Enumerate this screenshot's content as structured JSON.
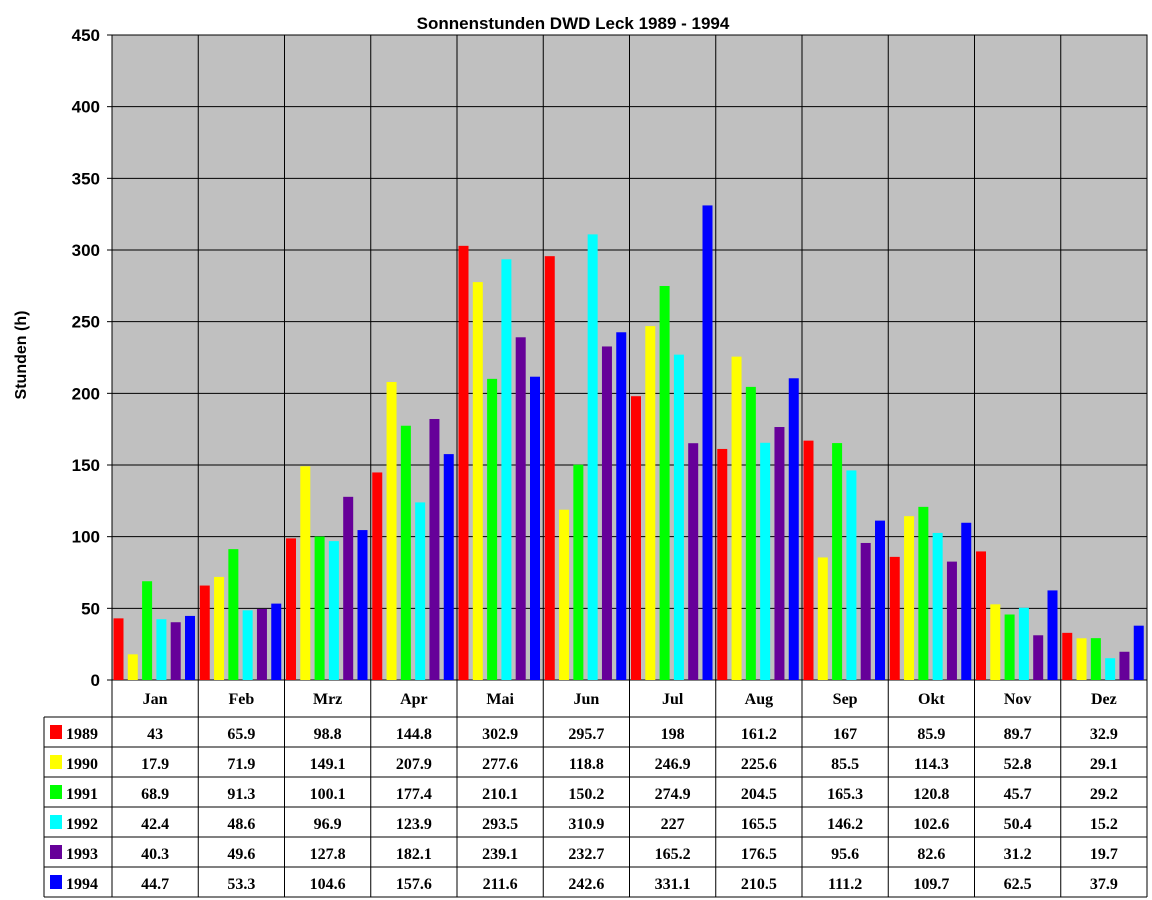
{
  "chart_data": {
    "type": "bar",
    "title": "Sonnenstunden DWD Leck 1989 - 1994",
    "xlabel": "",
    "ylabel": "Stunden (h)",
    "ylim": [
      0,
      450
    ],
    "yticks": [
      0,
      50,
      100,
      150,
      200,
      250,
      300,
      350,
      400,
      450
    ],
    "grid": true,
    "legend": "bottom-left data table",
    "plot_background": "#c0c0c0",
    "categories": [
      "Jan",
      "Feb",
      "Mrz",
      "Apr",
      "Mai",
      "Jun",
      "Jul",
      "Aug",
      "Sep",
      "Okt",
      "Nov",
      "Dez"
    ],
    "series": [
      {
        "name": "1989",
        "color": "#ff0000",
        "values": [
          43,
          65.9,
          98.8,
          144.8,
          302.9,
          295.7,
          198,
          161.2,
          167,
          85.9,
          89.7,
          32.9
        ]
      },
      {
        "name": "1990",
        "color": "#ffff00",
        "values": [
          17.9,
          71.9,
          149.1,
          207.9,
          277.6,
          118.8,
          246.9,
          225.6,
          85.5,
          114.3,
          52.8,
          29.1
        ]
      },
      {
        "name": "1991",
        "color": "#00ff00",
        "values": [
          68.9,
          91.3,
          100.1,
          177.4,
          210.1,
          150.2,
          274.9,
          204.5,
          165.3,
          120.8,
          45.7,
          29.2
        ]
      },
      {
        "name": "1992",
        "color": "#00ffff",
        "values": [
          42.4,
          48.6,
          96.9,
          123.9,
          293.5,
          310.9,
          227,
          165.5,
          146.2,
          102.6,
          50.4,
          15.2
        ]
      },
      {
        "name": "1993",
        "color": "#660099",
        "values": [
          40.3,
          49.6,
          127.8,
          182.1,
          239.1,
          232.7,
          165.2,
          176.5,
          95.6,
          82.6,
          31.2,
          19.7
        ]
      },
      {
        "name": "1994",
        "color": "#0000ff",
        "values": [
          44.7,
          53.3,
          104.6,
          157.6,
          211.6,
          242.6,
          331.1,
          210.5,
          111.2,
          109.7,
          62.5,
          37.9
        ]
      }
    ],
    "table_cells": [
      [
        "43",
        "65.9",
        "98.8",
        "144.8",
        "302.9",
        "295.7",
        "198",
        "161.2",
        "167",
        "85.9",
        "89.7",
        "32.9"
      ],
      [
        "17.9",
        "71.9",
        "149.1",
        "207.9",
        "277.6",
        "118.8",
        "246.9",
        "225.6",
        "85.5",
        "114.3",
        "52.8",
        "29.1"
      ],
      [
        "68.9",
        "91.3",
        "100.1",
        "177.4",
        "210.1",
        "150.2",
        "274.9",
        "204.5",
        "165.3",
        "120.8",
        "45.7",
        "29.2"
      ],
      [
        "42.4",
        "48.6",
        "96.9",
        "123.9",
        "293.5",
        "310.9",
        "227",
        "165.5",
        "146.2",
        "102.6",
        "50.4",
        "15.2"
      ],
      [
        "40.3",
        "49.6",
        "127.8",
        "182.1",
        "239.1",
        "232.7",
        "165.2",
        "176.5",
        "95.6",
        "82.6",
        "31.2",
        "19.7"
      ],
      [
        "44.7",
        "53.3",
        "104.6",
        "157.6",
        "211.6",
        "242.6",
        "331.1",
        "210.5",
        "111.2",
        "109.7",
        "62.5",
        "37.9"
      ]
    ]
  }
}
